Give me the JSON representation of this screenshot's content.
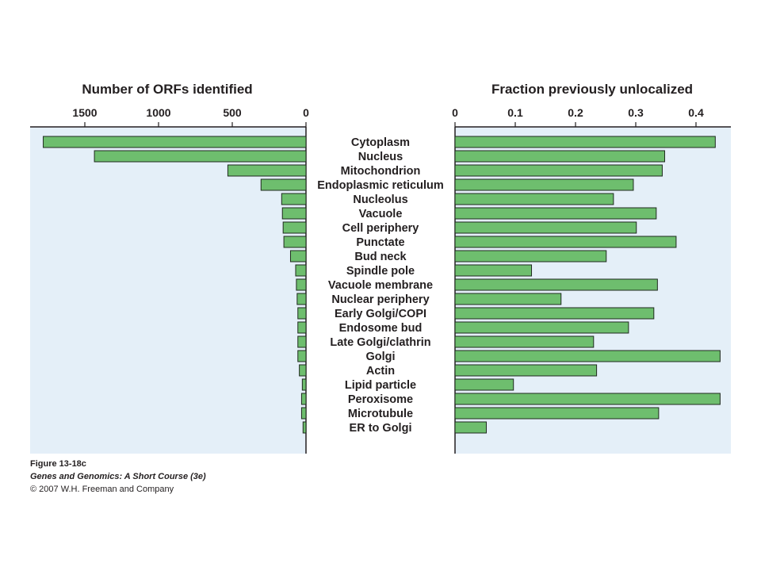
{
  "colors": {
    "panel_background": "#e4eff8",
    "bar_fill": "#6ebe6e",
    "bar_stroke": "#1f2a1f",
    "text": "#231f20"
  },
  "chart_data": [
    {
      "type": "bar",
      "orientation": "horizontal",
      "direction": "right-to-left",
      "title": "Number of ORFs identified",
      "xlabel": "Number of ORFs identified",
      "ylabel": "",
      "xlim": [
        0,
        1800
      ],
      "ticks": [
        1500,
        1000,
        500,
        0
      ],
      "grid": false,
      "categories": [
        "Cytoplasm",
        "Nucleus",
        "Mitochondrion",
        "Endoplasmic reticulum",
        "Nucleolus",
        "Vacuole",
        "Cell periphery",
        "Punctate",
        "Bud neck",
        "Spindle pole",
        "Vacuole membrane",
        "Nuclear periphery",
        "Early Golgi/COPI",
        "Endosome bud",
        "Late Golgi/clathrin",
        "Golgi",
        "Actin",
        "Lipid particle",
        "Peroxisome",
        "Microtubule",
        "ER to Golgi"
      ],
      "values": [
        1782,
        1435,
        530,
        305,
        165,
        160,
        155,
        150,
        105,
        70,
        65,
        60,
        55,
        55,
        55,
        55,
        45,
        25,
        30,
        30,
        20
      ]
    },
    {
      "type": "bar",
      "orientation": "horizontal",
      "title": "Fraction previously unlocalized",
      "xlabel": "Fraction previously unlocalized",
      "ylabel": "",
      "xlim": [
        0,
        0.45
      ],
      "ticks": [
        0,
        0.1,
        0.2,
        0.3,
        0.4
      ],
      "grid": false,
      "categories": [
        "Cytoplasm",
        "Nucleus",
        "Mitochondrion",
        "Endoplasmic reticulum",
        "Nucleolus",
        "Vacuole",
        "Cell periphery",
        "Punctate",
        "Bud neck",
        "Spindle pole",
        "Vacuole membrane",
        "Nuclear periphery",
        "Early Golgi/COPI",
        "Endosome bud",
        "Late Golgi/clathrin",
        "Golgi",
        "Actin",
        "Lipid particle",
        "Peroxisome",
        "Microtubule",
        "ER to Golgi"
      ],
      "values": [
        0.432,
        0.348,
        0.344,
        0.296,
        0.263,
        0.334,
        0.301,
        0.367,
        0.251,
        0.127,
        0.336,
        0.176,
        0.33,
        0.288,
        0.23,
        0.44,
        0.235,
        0.097,
        0.44,
        0.338,
        0.052
      ]
    }
  ],
  "caption": {
    "figure": "Figure 13-18c",
    "book": "Genes and Genomics: A Short Course (3e)",
    "copyright": "© 2007 W.H. Freeman and Company"
  }
}
